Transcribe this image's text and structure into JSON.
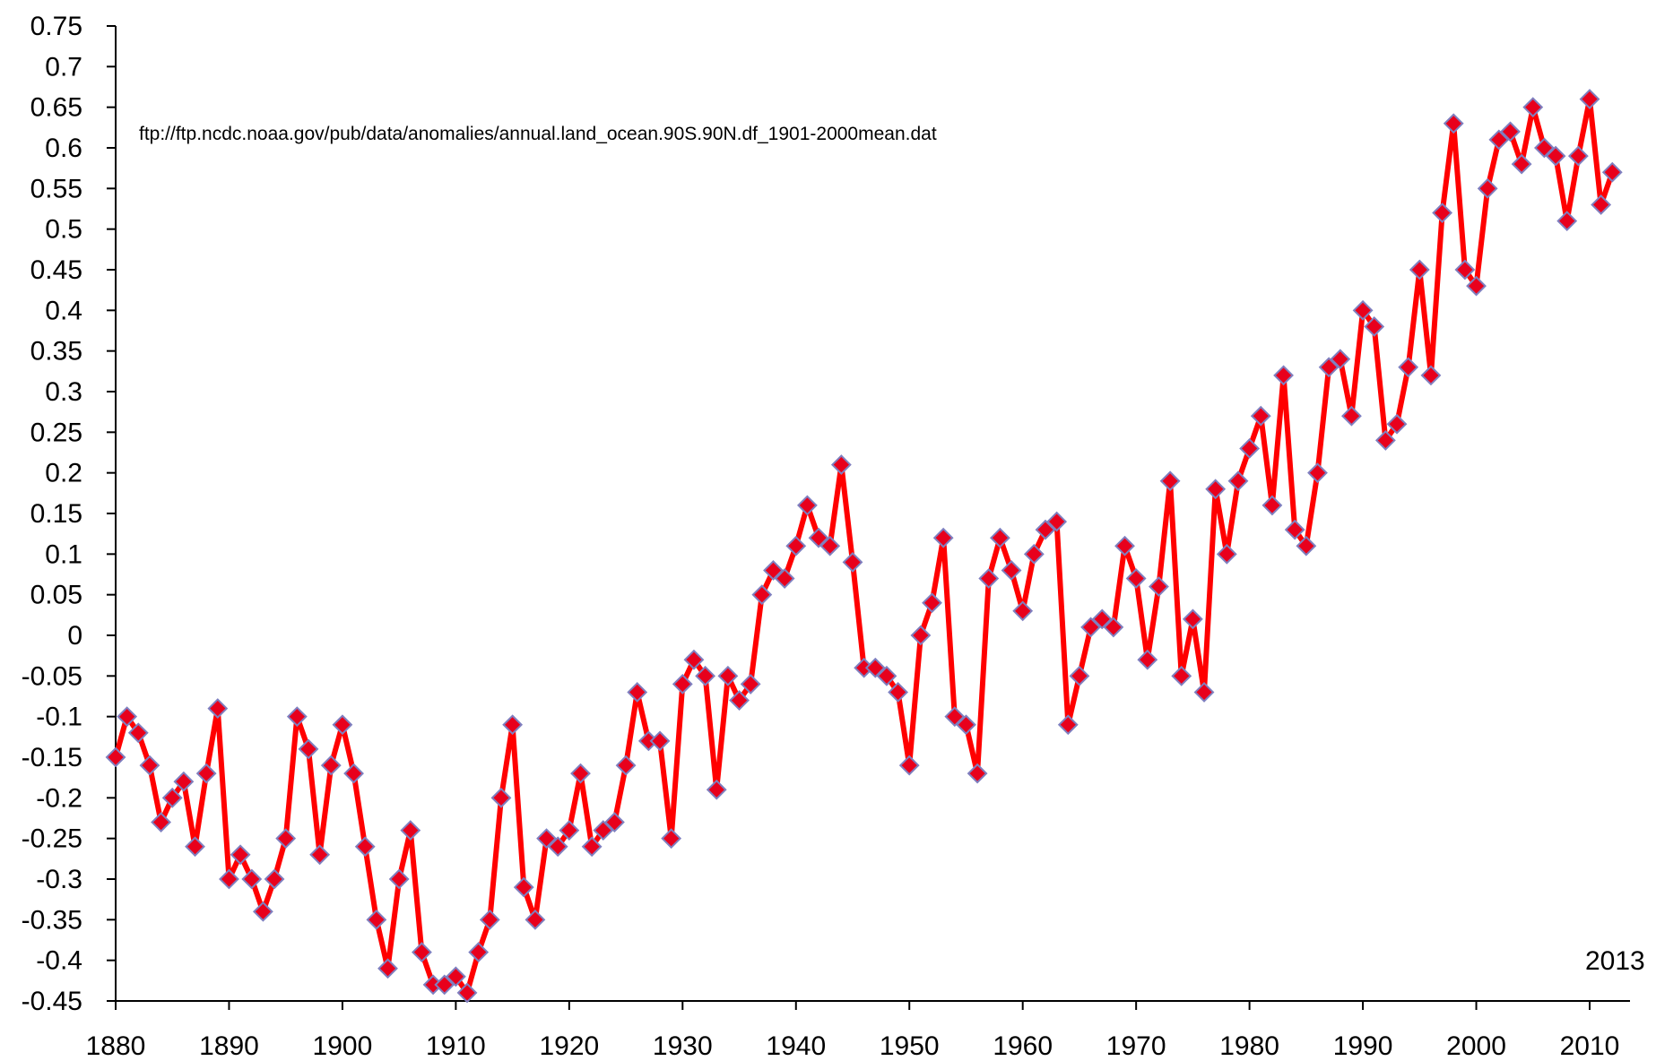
{
  "chart_data": {
    "type": "line",
    "title": "",
    "xlabel": "",
    "ylabel": "",
    "xlim": [
      1880,
      2013
    ],
    "ylim": [
      -0.45,
      0.75
    ],
    "grid": false,
    "legend": "none",
    "x_ticks": [
      "1880",
      "1890",
      "1900",
      "1910",
      "1920",
      "1930",
      "1940",
      "1950",
      "1960",
      "1970",
      "1980",
      "1990",
      "2000",
      "2010"
    ],
    "y_ticks": [
      "0.75",
      "0.7",
      "0.65",
      "0.6",
      "0.55",
      "0.5",
      "0.45",
      "0.4",
      "0.35",
      "0.3",
      "0.25",
      "0.2",
      "0.15",
      "0.1",
      "0.05",
      "0",
      "-0.05",
      "-0.1",
      "-0.15",
      "-0.2",
      "-0.25",
      "-0.3",
      "-0.35",
      "-0.4",
      "-0.45"
    ],
    "annotations": {
      "source": "ftp://ftp.ncdc.noaa.gov/pub/data/anomalies/annual.land_ocean.90S.90N.df_1901-2000mean.dat",
      "end_year": "2013"
    },
    "colors": {
      "line": "#ff0000",
      "marker_fill": "#e8001c",
      "marker_edge": "#7f7fbf",
      "axis": "#000000"
    },
    "series": [
      {
        "x_start": 1880,
        "x_step": 1,
        "values": [
          -0.15,
          -0.1,
          -0.12,
          -0.16,
          -0.23,
          -0.2,
          -0.18,
          -0.26,
          -0.17,
          -0.09,
          -0.3,
          -0.27,
          -0.3,
          -0.34,
          -0.3,
          -0.25,
          -0.1,
          -0.14,
          -0.27,
          -0.16,
          -0.11,
          -0.17,
          -0.26,
          -0.35,
          -0.41,
          -0.3,
          -0.24,
          -0.39,
          -0.43,
          -0.43,
          -0.42,
          -0.44,
          -0.39,
          -0.35,
          -0.2,
          -0.11,
          -0.31,
          -0.35,
          -0.25,
          -0.26,
          -0.24,
          -0.17,
          -0.26,
          -0.24,
          -0.23,
          -0.16,
          -0.07,
          -0.13,
          -0.13,
          -0.25,
          -0.06,
          -0.03,
          -0.05,
          -0.19,
          -0.05,
          -0.08,
          -0.06,
          0.05,
          0.08,
          0.07,
          0.11,
          0.16,
          0.12,
          0.11,
          0.21,
          0.09,
          -0.04,
          -0.04,
          -0.05,
          -0.07,
          -0.16,
          0.0,
          0.04,
          0.12,
          -0.1,
          -0.11,
          -0.17,
          0.07,
          0.12,
          0.08,
          0.03,
          0.1,
          0.13,
          0.14,
          -0.11,
          -0.05,
          0.01,
          0.02,
          0.01,
          0.11,
          0.07,
          -0.03,
          0.06,
          0.19,
          -0.05,
          0.02,
          -0.07,
          0.18,
          0.1,
          0.19,
          0.23,
          0.27,
          0.16,
          0.32,
          0.13,
          0.11,
          0.2,
          0.33,
          0.34,
          0.27,
          0.4,
          0.38,
          0.24,
          0.26,
          0.33,
          0.45,
          0.32,
          0.52,
          0.63,
          0.45,
          0.43,
          0.55,
          0.61,
          0.62,
          0.58,
          0.65,
          0.6,
          0.59,
          0.51,
          0.59,
          0.66,
          0.53,
          0.57
        ]
      }
    ]
  }
}
